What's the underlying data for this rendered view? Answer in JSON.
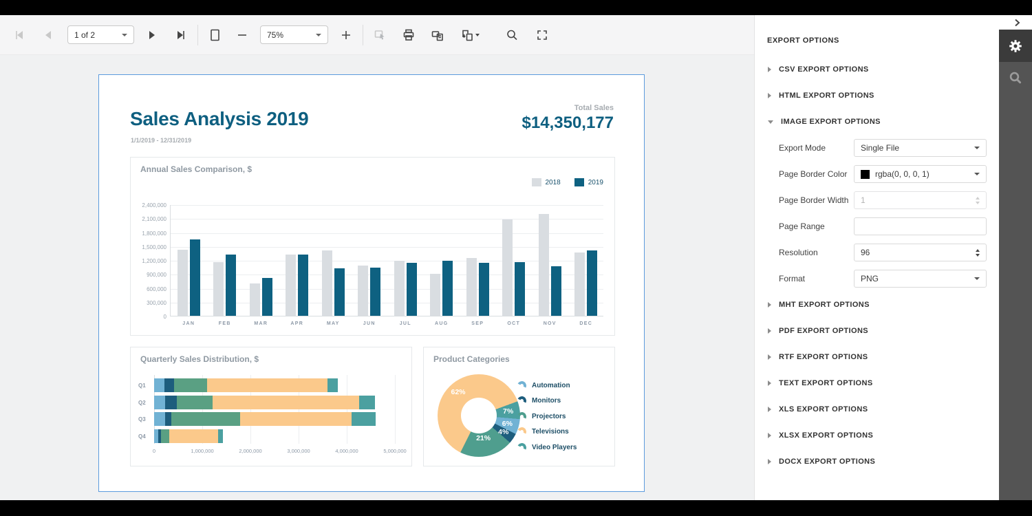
{
  "toolbar": {
    "page_selector": {
      "value": "1 of 2"
    },
    "zoom_selector": {
      "value": "75%"
    },
    "icons": [
      {
        "name": "first-page",
        "disabled": true
      },
      {
        "name": "prev-page",
        "disabled": true
      },
      {
        "name": "next-page",
        "disabled": false
      },
      {
        "name": "last-page",
        "disabled": false
      },
      {
        "name": "page-layout",
        "disabled": false
      },
      {
        "name": "zoom-out",
        "disabled": false
      },
      {
        "name": "zoom-in",
        "disabled": false
      },
      {
        "name": "highlight-editing-fields",
        "disabled": true
      },
      {
        "name": "print",
        "disabled": false
      },
      {
        "name": "print-page",
        "disabled": false
      },
      {
        "name": "export-to",
        "disabled": false
      },
      {
        "name": "search",
        "disabled": false
      },
      {
        "name": "fullscreen",
        "disabled": false
      }
    ]
  },
  "report": {
    "title": "Sales Analysis 2019",
    "date_range": "1/1/2019 - 12/31/2019",
    "total_sales_label": "Total Sales",
    "total_sales_value": "$14,350,177"
  },
  "chart_data": [
    {
      "type": "bar",
      "title": "Annual Sales Comparison, $",
      "categories": [
        "JAN",
        "FEB",
        "MAR",
        "APR",
        "MAY",
        "JUN",
        "JUL",
        "AUG",
        "SEP",
        "OCT",
        "NOV",
        "DEC"
      ],
      "series": [
        {
          "name": "2018",
          "color": "#d9dde1",
          "values": [
            1420000,
            1160000,
            700000,
            1320000,
            1410000,
            1075000,
            1190000,
            900000,
            1240000,
            2080000,
            2200000,
            1370000
          ]
        },
        {
          "name": "2019",
          "color": "#0e6181",
          "values": [
            1640000,
            1320000,
            820000,
            1320000,
            1020000,
            1035000,
            1135000,
            1180000,
            1145000,
            1160000,
            1060000,
            1410000
          ]
        }
      ],
      "ylim": [
        0,
        2400000
      ],
      "ytick_step": 300000,
      "grid": true,
      "legend_position": "top-right"
    },
    {
      "type": "bar",
      "orientation": "horizontal-stacked",
      "title": "Quarterly Sales Distribution, $",
      "categories": [
        "Q1",
        "Q2",
        "Q3",
        "Q4"
      ],
      "series": [
        {
          "name": "Automation",
          "color": "#71b2d4",
          "values": [
            215000,
            230000,
            225000,
            85000
          ]
        },
        {
          "name": "Monitors",
          "color": "#1d5d7d",
          "values": [
            195000,
            235000,
            125000,
            60000
          ]
        },
        {
          "name": "Projectors",
          "color": "#5aa083",
          "values": [
            695000,
            755000,
            1435000,
            170000
          ]
        },
        {
          "name": "Televisions",
          "color": "#fbc98b",
          "values": [
            2490000,
            3040000,
            2320000,
            1020000
          ]
        },
        {
          "name": "Video Players",
          "color": "#4ba0a0",
          "values": [
            225000,
            320000,
            500000,
            100000
          ]
        }
      ],
      "xlim": [
        0,
        5000000
      ],
      "xticks": [
        "0",
        "1,000,000",
        "2,000,000",
        "3,000,000",
        "4,000,000",
        "5,000,000"
      ],
      "grid": true
    },
    {
      "type": "pie",
      "donut": true,
      "title": "Product Categories",
      "labels": [
        "Automation",
        "Monitors",
        "Projectors",
        "Televisions",
        "Video Players"
      ],
      "values": [
        6,
        4,
        21,
        62,
        7
      ],
      "value_labels": [
        "6%",
        "4%",
        "21%",
        "62%",
        "7%"
      ],
      "colors": [
        "#71b2d4",
        "#1d5d7d",
        "#4f9e8e",
        "#fbc98b",
        "#4ba0a0"
      ],
      "start_angle": 95,
      "legend_position": "right"
    }
  ],
  "export_panel": {
    "title": "EXPORT OPTIONS",
    "sections": [
      {
        "label": "CSV EXPORT OPTIONS",
        "expanded": false
      },
      {
        "label": "HTML EXPORT OPTIONS",
        "expanded": false
      },
      {
        "label": "IMAGE EXPORT OPTIONS",
        "expanded": true
      },
      {
        "label": "MHT EXPORT OPTIONS",
        "expanded": false
      },
      {
        "label": "PDF EXPORT OPTIONS",
        "expanded": false
      },
      {
        "label": "RTF EXPORT OPTIONS",
        "expanded": false
      },
      {
        "label": "TEXT EXPORT OPTIONS",
        "expanded": false
      },
      {
        "label": "XLS EXPORT OPTIONS",
        "expanded": false
      },
      {
        "label": "XLSX EXPORT OPTIONS",
        "expanded": false
      },
      {
        "label": "DOCX EXPORT OPTIONS",
        "expanded": false
      }
    ],
    "image_options_fields": [
      {
        "label": "Export Mode",
        "control": "select",
        "value": "Single File",
        "disabled": false
      },
      {
        "label": "Page Border Color",
        "control": "color-select",
        "value": "rgba(0, 0, 0, 1)",
        "swatch": "#000000",
        "disabled": false
      },
      {
        "label": "Page Border Width",
        "control": "spinner",
        "value": "1",
        "disabled": true
      },
      {
        "label": "Page Range",
        "control": "text",
        "value": "",
        "disabled": false
      },
      {
        "label": "Resolution",
        "control": "spinner",
        "value": "96",
        "disabled": false
      },
      {
        "label": "Format",
        "control": "select",
        "value": "PNG",
        "disabled": false
      }
    ]
  },
  "side_tabs": [
    {
      "name": "settings",
      "active": true
    },
    {
      "name": "search",
      "active": false
    }
  ],
  "colors": {
    "accent_teal": "#0e6181",
    "page_border": "#5b9add",
    "toolbar_bg": "#f5f5f6",
    "viewer_bg": "#f0f1f2",
    "strip_bg": "#545454",
    "strip_active_bg": "#3b3b3b"
  }
}
